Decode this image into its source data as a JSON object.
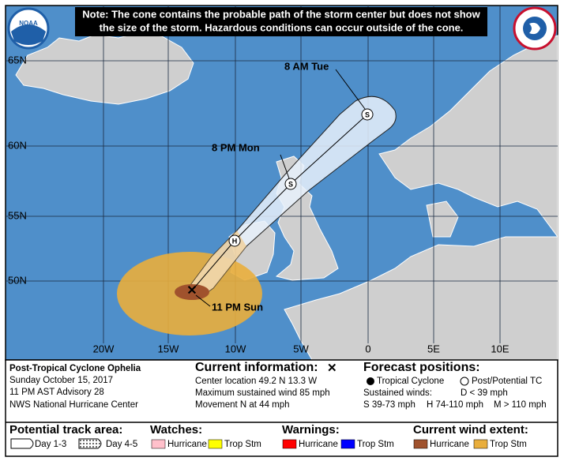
{
  "note": {
    "line1": "Note: The cone contains the probable path of the storm center but does not show",
    "line2": "the size of the storm. Hazardous conditions can occur outside of the cone."
  },
  "logos": {
    "noaa": "NOAA"
  },
  "map": {
    "lat_labels": [
      "65N",
      "60N",
      "55N",
      "50N"
    ],
    "lon_labels": [
      "20W",
      "15W",
      "10W",
      "5W",
      "0",
      "5E",
      "10E"
    ],
    "forecast_points": [
      {
        "time": "11 PM Sun"
      },
      {
        "symbol": "H"
      },
      {
        "time": "8 PM Mon",
        "symbol": "S"
      },
      {
        "time": "8 AM Tue",
        "symbol": "S"
      }
    ]
  },
  "storm": {
    "name": "Post-Tropical Cyclone Ophelia",
    "date": "Sunday October 15, 2017",
    "advisory": "11 PM AST Advisory 28",
    "center": "NWS National Hurricane Center"
  },
  "current": {
    "title": "Current information:",
    "marker": "✕",
    "location": "Center location 49.2 N 13.3 W",
    "wind": "Maximum sustained wind 85 mph",
    "movement": "Movement N at 44 mph"
  },
  "forecast": {
    "title": "Forecast positions:",
    "tropical": "Tropical Cyclone",
    "post": "Post/Potential TC",
    "winds_title": "Sustained winds:",
    "d": "D < 39 mph",
    "s": "S 39-73 mph",
    "h": "H 74-110 mph",
    "m": "M > 110 mph"
  },
  "legend": {
    "track_title": "Potential track area:",
    "day13": "Day 1-3",
    "day45": "Day 4-5",
    "watches_title": "Watches:",
    "watch_hurricane": "Hurricane",
    "watch_tropstm": "Trop Stm",
    "warnings_title": "Warnings:",
    "warn_hurricane": "Hurricane",
    "warn_tropstm": "Trop Stm",
    "wind_title": "Current wind extent:",
    "wind_hurricane": "Hurricane",
    "wind_tropstm": "Trop Stm"
  }
}
